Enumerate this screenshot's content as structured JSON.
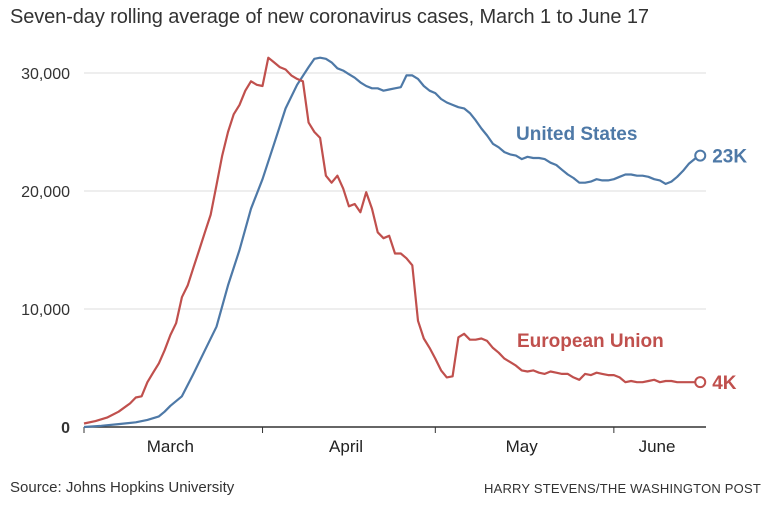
{
  "title": "Seven-day rolling average of new coronavirus cases, March 1 to June 17",
  "source": "Source: Johns Hopkins University",
  "credit": "HARRY STEVENS/THE WASHINGTON POST",
  "colors": {
    "us": "#4e79a7",
    "eu": "#c0504d",
    "grid": "#dddddd",
    "axis": "#333333"
  },
  "chart_data": {
    "type": "line",
    "title": "Seven-day rolling average of new coronavirus cases, March 1 to June 17",
    "xlabel": "",
    "ylabel": "",
    "x_unit": "day of year 2020",
    "xlim": [
      61,
      169
    ],
    "ylim": [
      0,
      30000
    ],
    "yticks": [
      0,
      10000,
      20000,
      30000
    ],
    "ytick_labels": [
      "0",
      "10,000",
      "20,000",
      "30,000"
    ],
    "xticks": [
      {
        "label": "March",
        "at": 76
      },
      {
        "label": "April",
        "at": 106.5
      },
      {
        "label": "May",
        "at": 137
      },
      {
        "label": "June",
        "at": 160.5
      }
    ],
    "month_boundaries": [
      61,
      92,
      122,
      153
    ],
    "grid": "horizontal",
    "series": [
      {
        "name": "United States",
        "end_label": "23K",
        "points": [
          [
            61,
            0
          ],
          [
            64,
            100
          ],
          [
            67,
            250
          ],
          [
            70,
            400
          ],
          [
            72,
            600
          ],
          [
            74,
            900
          ],
          [
            75,
            1300
          ],
          [
            76,
            1800
          ],
          [
            78,
            2600
          ],
          [
            80,
            4500
          ],
          [
            82,
            6500
          ],
          [
            84,
            8500
          ],
          [
            86,
            12000
          ],
          [
            88,
            15000
          ],
          [
            90,
            18500
          ],
          [
            92,
            21000
          ],
          [
            94,
            24000
          ],
          [
            96,
            27000
          ],
          [
            98,
            29000
          ],
          [
            100,
            30500
          ],
          [
            101,
            31200
          ],
          [
            102,
            31300
          ],
          [
            103,
            31200
          ],
          [
            104,
            30900
          ],
          [
            105,
            30400
          ],
          [
            106,
            30200
          ],
          [
            107,
            29900
          ],
          [
            108,
            29600
          ],
          [
            109,
            29200
          ],
          [
            110,
            28900
          ],
          [
            111,
            28700
          ],
          [
            112,
            28700
          ],
          [
            113,
            28500
          ],
          [
            114,
            28600
          ],
          [
            115,
            28700
          ],
          [
            116,
            28800
          ],
          [
            117,
            29800
          ],
          [
            118,
            29800
          ],
          [
            119,
            29500
          ],
          [
            120,
            28900
          ],
          [
            121,
            28500
          ],
          [
            122,
            28300
          ],
          [
            123,
            27800
          ],
          [
            124,
            27500
          ],
          [
            125,
            27300
          ],
          [
            126,
            27100
          ],
          [
            127,
            27000
          ],
          [
            128,
            26600
          ],
          [
            129,
            26000
          ],
          [
            130,
            25300
          ],
          [
            131,
            24700
          ],
          [
            132,
            24000
          ],
          [
            133,
            23700
          ],
          [
            134,
            23300
          ],
          [
            135,
            23100
          ],
          [
            136,
            23000
          ],
          [
            137,
            22700
          ],
          [
            138,
            22900
          ],
          [
            139,
            22800
          ],
          [
            140,
            22800
          ],
          [
            141,
            22700
          ],
          [
            142,
            22400
          ],
          [
            143,
            22200
          ],
          [
            144,
            21800
          ],
          [
            145,
            21400
          ],
          [
            146,
            21100
          ],
          [
            147,
            20700
          ],
          [
            148,
            20700
          ],
          [
            149,
            20800
          ],
          [
            150,
            21000
          ],
          [
            151,
            20900
          ],
          [
            152,
            20900
          ],
          [
            153,
            21000
          ],
          [
            154,
            21200
          ],
          [
            155,
            21400
          ],
          [
            156,
            21400
          ],
          [
            157,
            21300
          ],
          [
            158,
            21300
          ],
          [
            159,
            21200
          ],
          [
            160,
            21000
          ],
          [
            161,
            20900
          ],
          [
            162,
            20600
          ],
          [
            163,
            20800
          ],
          [
            164,
            21200
          ],
          [
            165,
            21700
          ],
          [
            166,
            22300
          ],
          [
            167,
            22700
          ],
          [
            168,
            23000
          ]
        ]
      },
      {
        "name": "European Union",
        "end_label": "4K",
        "points": [
          [
            61,
            300
          ],
          [
            63,
            500
          ],
          [
            65,
            800
          ],
          [
            67,
            1300
          ],
          [
            69,
            2000
          ],
          [
            70,
            2500
          ],
          [
            71,
            2600
          ],
          [
            72,
            3800
          ],
          [
            73,
            4600
          ],
          [
            74,
            5400
          ],
          [
            75,
            6500
          ],
          [
            76,
            7800
          ],
          [
            77,
            8800
          ],
          [
            78,
            11000
          ],
          [
            79,
            12000
          ],
          [
            80,
            13500
          ],
          [
            81,
            15000
          ],
          [
            82,
            16500
          ],
          [
            83,
            18000
          ],
          [
            84,
            20500
          ],
          [
            85,
            23000
          ],
          [
            86,
            25000
          ],
          [
            87,
            26500
          ],
          [
            88,
            27300
          ],
          [
            89,
            28500
          ],
          [
            90,
            29300
          ],
          [
            91,
            29000
          ],
          [
            92,
            28900
          ],
          [
            93,
            31300
          ],
          [
            94,
            30900
          ],
          [
            95,
            30500
          ],
          [
            96,
            30300
          ],
          [
            97,
            29800
          ],
          [
            98,
            29500
          ],
          [
            99,
            29300
          ],
          [
            100,
            25800
          ],
          [
            101,
            25000
          ],
          [
            102,
            24500
          ],
          [
            103,
            21300
          ],
          [
            104,
            20700
          ],
          [
            105,
            21300
          ],
          [
            106,
            20200
          ],
          [
            107,
            18700
          ],
          [
            108,
            18900
          ],
          [
            109,
            18200
          ],
          [
            110,
            19900
          ],
          [
            111,
            18500
          ],
          [
            112,
            16500
          ],
          [
            113,
            16000
          ],
          [
            114,
            16200
          ],
          [
            115,
            14700
          ],
          [
            116,
            14700
          ],
          [
            117,
            14300
          ],
          [
            118,
            13700
          ],
          [
            119,
            9000
          ],
          [
            120,
            7500
          ],
          [
            121,
            6700
          ],
          [
            122,
            5800
          ],
          [
            123,
            4800
          ],
          [
            124,
            4200
          ],
          [
            125,
            4300
          ],
          [
            126,
            7600
          ],
          [
            127,
            7900
          ],
          [
            128,
            7400
          ],
          [
            129,
            7400
          ],
          [
            130,
            7500
          ],
          [
            131,
            7300
          ],
          [
            132,
            6700
          ],
          [
            133,
            6300
          ],
          [
            134,
            5800
          ],
          [
            135,
            5500
          ],
          [
            136,
            5200
          ],
          [
            137,
            4800
          ],
          [
            138,
            4700
          ],
          [
            139,
            4800
          ],
          [
            140,
            4600
          ],
          [
            141,
            4500
          ],
          [
            142,
            4700
          ],
          [
            143,
            4600
          ],
          [
            144,
            4500
          ],
          [
            145,
            4500
          ],
          [
            146,
            4200
          ],
          [
            147,
            4000
          ],
          [
            148,
            4500
          ],
          [
            149,
            4400
          ],
          [
            150,
            4600
          ],
          [
            151,
            4500
          ],
          [
            152,
            4400
          ],
          [
            153,
            4400
          ],
          [
            154,
            4200
          ],
          [
            155,
            3800
          ],
          [
            156,
            3900
          ],
          [
            157,
            3800
          ],
          [
            158,
            3800
          ],
          [
            159,
            3900
          ],
          [
            160,
            4000
          ],
          [
            161,
            3800
          ],
          [
            162,
            3900
          ],
          [
            163,
            3900
          ],
          [
            164,
            3800
          ],
          [
            165,
            3800
          ],
          [
            166,
            3800
          ],
          [
            167,
            3800
          ],
          [
            168,
            3800
          ]
        ]
      }
    ]
  }
}
